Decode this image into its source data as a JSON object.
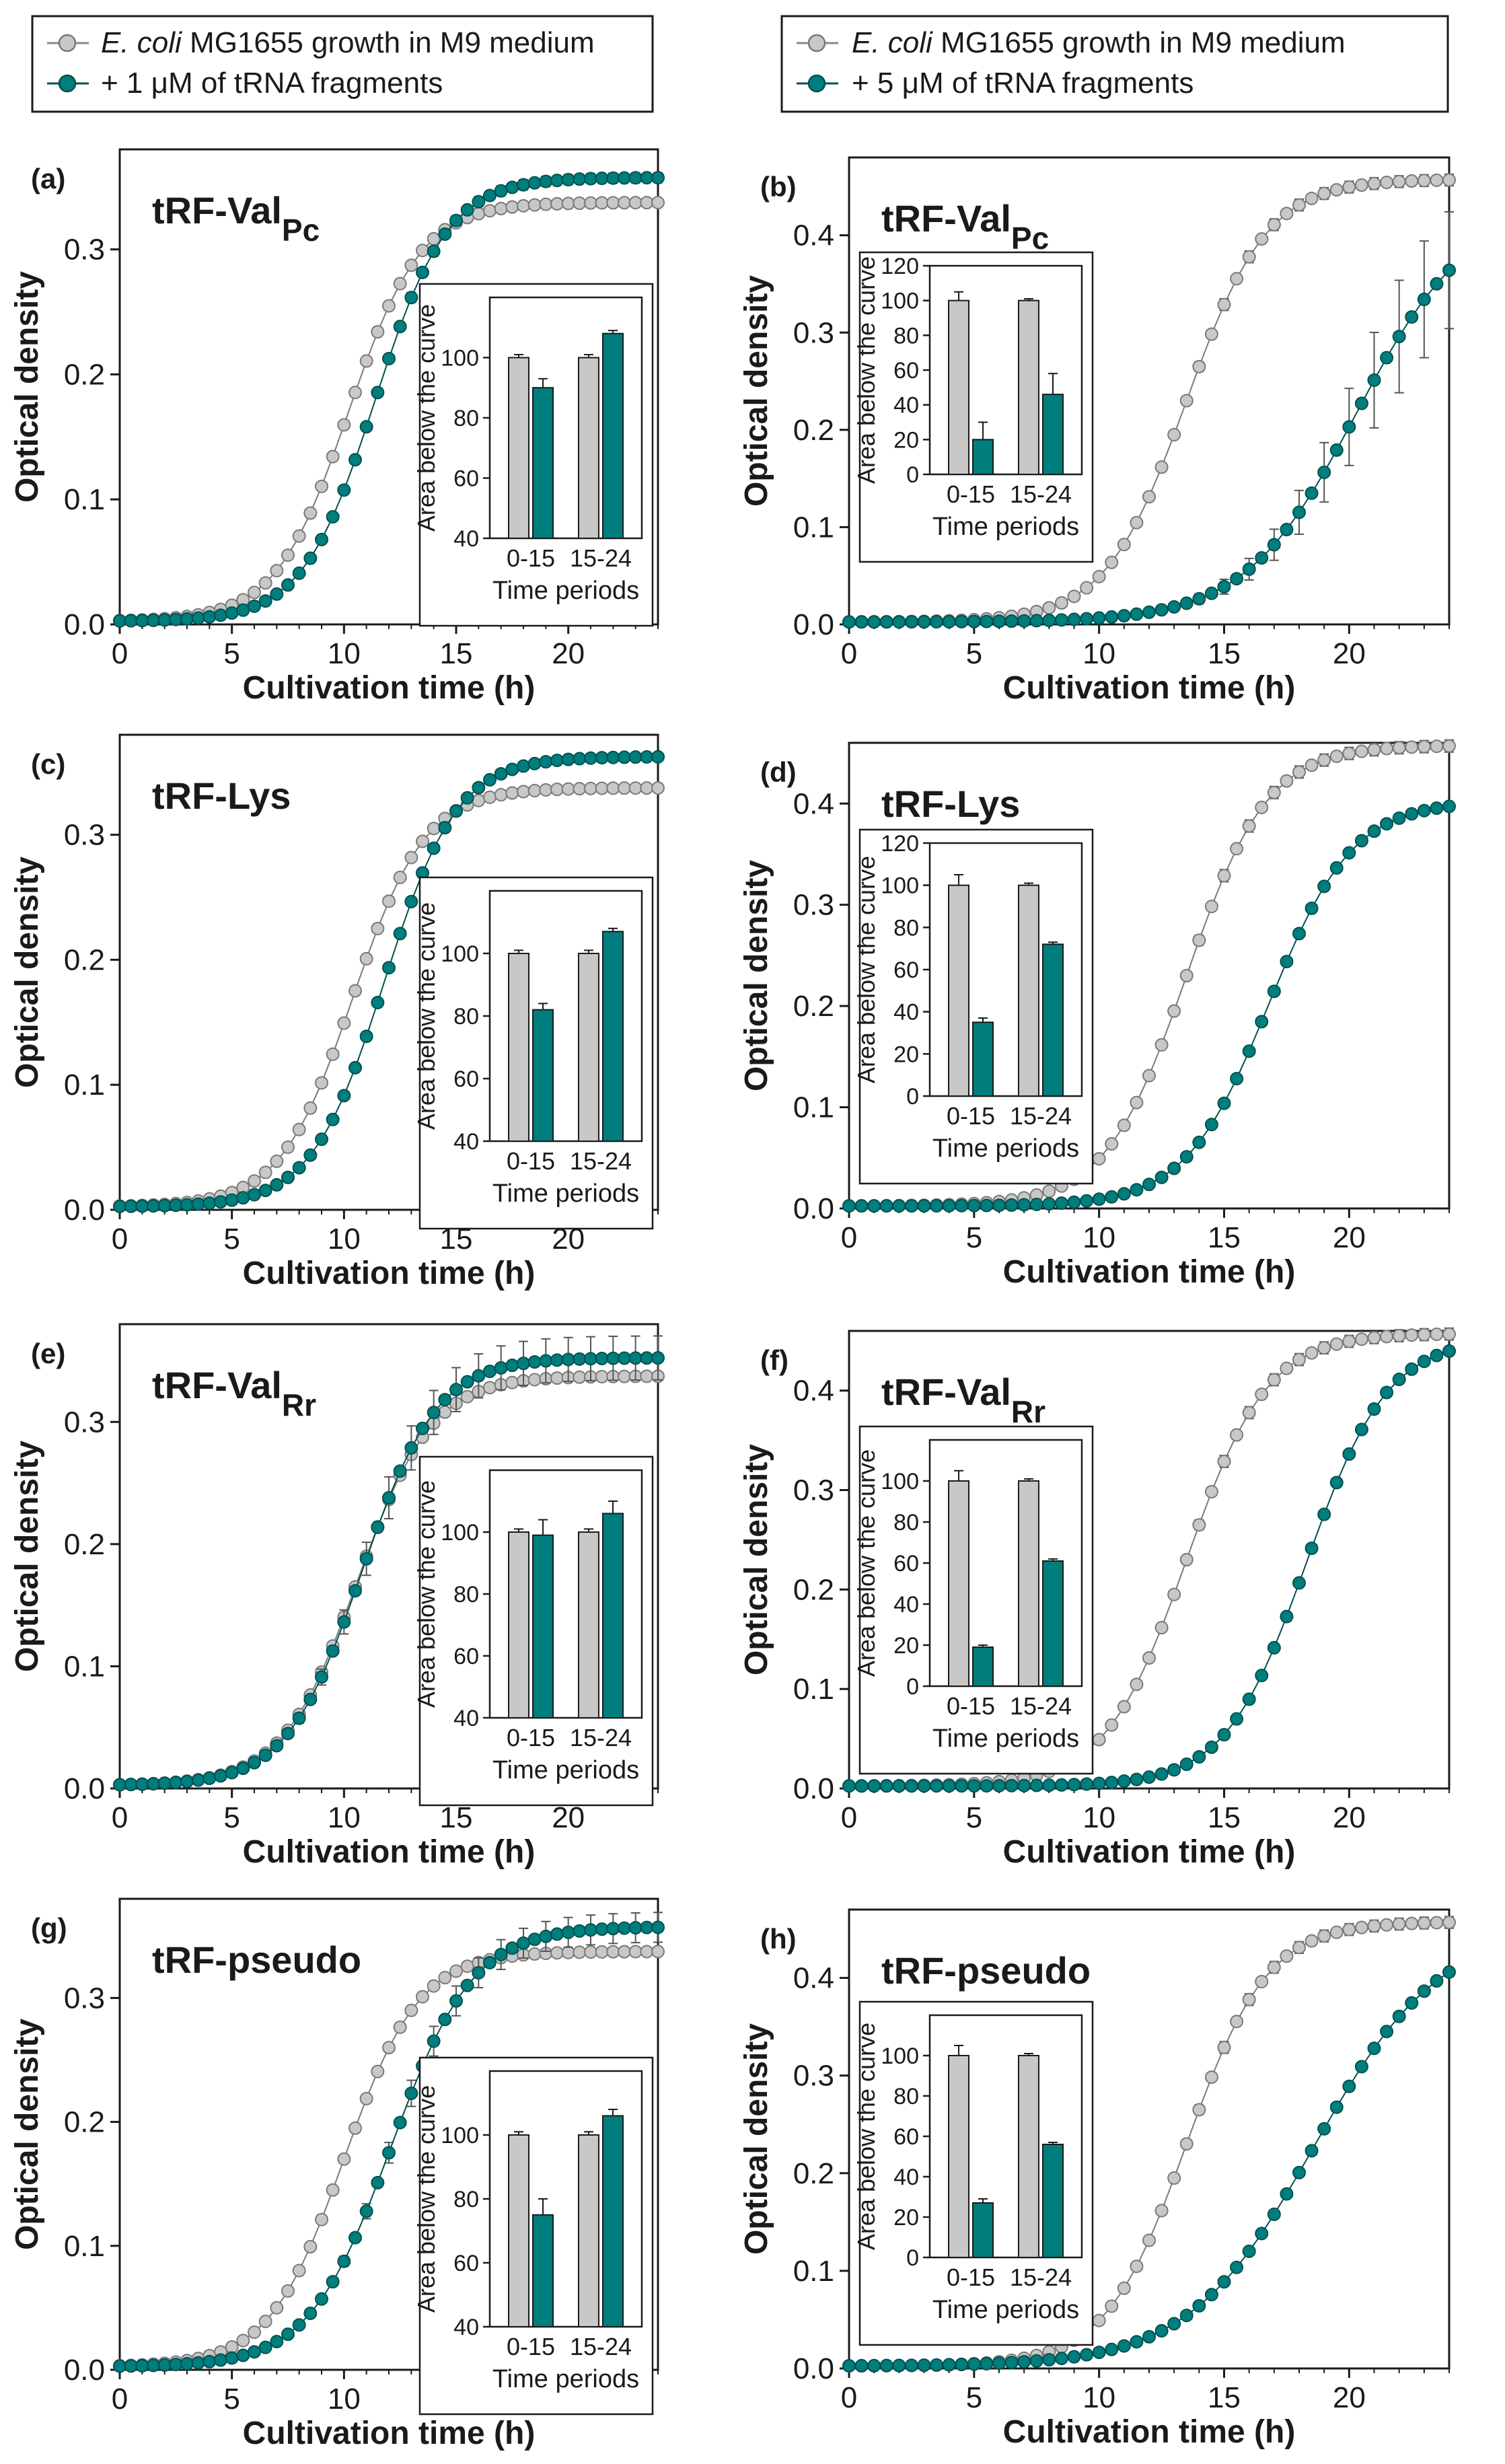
{
  "colors": {
    "control": "#c8c8c8",
    "treated": "#007e7e",
    "treated_dark": "#00504f",
    "axis": "#1a1a1a"
  },
  "legends": [
    {
      "control_italic": "E. coli",
      "control_rest": " MG1655 growth in M9 medium",
      "treated": "+ 1 μM of tRNA fragments"
    },
    {
      "control_italic": "E. coli",
      "control_rest": " MG1655 growth in M9 medium",
      "treated": "+ 5 μM of tRNA fragments"
    }
  ],
  "chart_data": [
    {
      "panel": "(a)",
      "title": "tRF-Val",
      "sub": "Pc",
      "type": "line",
      "xlabel": "Cultivation time (h)",
      "ylabel": "Optical density",
      "xlim": [
        0,
        24
      ],
      "ylim": [
        0,
        0.38
      ],
      "xticks": [
        0,
        5,
        10,
        15,
        20
      ],
      "yticks": [
        0.0,
        0.1,
        0.2,
        0.3
      ],
      "ytick_labels": [
        "0.0",
        "0.1",
        "0.2",
        "0.3"
      ],
      "series": [
        {
          "name": "control",
          "K": 0.335,
          "mid": 10.2,
          "r": 0.62,
          "err": 0.003
        },
        {
          "name": "treated",
          "K": 0.355,
          "mid": 11.4,
          "r": 0.62,
          "err": 0.004
        }
      ],
      "inset": {
        "type": "bar",
        "xlabel": "Time periods",
        "ylabel": "Area below the curve",
        "categories": [
          "0-15",
          "15-24"
        ],
        "ylim": [
          40,
          120
        ],
        "yticks": [
          40,
          60,
          80,
          100
        ],
        "control": [
          100,
          100
        ],
        "treated": [
          90,
          108
        ],
        "control_err": [
          1,
          1
        ],
        "treated_err": [
          3,
          1
        ]
      }
    },
    {
      "panel": "(b)",
      "title": "tRF-Val",
      "sub": "Pc",
      "type": "line",
      "xlabel": "Cultivation time (h)",
      "ylabel": "Optical density",
      "xlim": [
        0,
        24
      ],
      "ylim": [
        0,
        0.48
      ],
      "xticks": [
        0,
        5,
        10,
        15,
        20
      ],
      "yticks": [
        0.0,
        0.1,
        0.2,
        0.3,
        0.4
      ],
      "ytick_labels": [
        "0.0",
        "0.1",
        "0.2",
        "0.3",
        "0.4"
      ],
      "series": [
        {
          "name": "control",
          "K": 0.455,
          "mid": 13.5,
          "r": 0.62,
          "err": 0.006
        },
        {
          "name": "treated",
          "K": 0.43,
          "mid": 20.3,
          "r": 0.45,
          "err": 0.06
        }
      ],
      "inset": {
        "type": "bar",
        "xlabel": "Time periods",
        "ylabel": "Area below the curve",
        "categories": [
          "0-15",
          "15-24"
        ],
        "ylim": [
          0,
          120
        ],
        "yticks": [
          0,
          20,
          40,
          60,
          80,
          100,
          120
        ],
        "control": [
          100,
          100
        ],
        "treated": [
          20,
          46
        ],
        "control_err": [
          5,
          1
        ],
        "treated_err": [
          10,
          12
        ]
      }
    },
    {
      "panel": "(c)",
      "title": "tRF-Lys",
      "sub": "",
      "type": "line",
      "xlabel": "Cultivation time (h)",
      "ylabel": "Optical density",
      "xlim": [
        0,
        24
      ],
      "ylim": [
        0,
        0.38
      ],
      "xticks": [
        0,
        5,
        10,
        15,
        20
      ],
      "yticks": [
        0.0,
        0.1,
        0.2,
        0.3
      ],
      "ytick_labels": [
        "0.0",
        "0.1",
        "0.2",
        "0.3"
      ],
      "series": [
        {
          "name": "control",
          "K": 0.335,
          "mid": 10.4,
          "r": 0.62,
          "err": 0.003
        },
        {
          "name": "treated",
          "K": 0.36,
          "mid": 11.8,
          "r": 0.62,
          "err": 0.003
        }
      ],
      "inset": {
        "type": "bar",
        "xlabel": "Time periods",
        "ylabel": "Area below the curve",
        "categories": [
          "0-15",
          "15-24"
        ],
        "ylim": [
          40,
          120
        ],
        "yticks": [
          40,
          60,
          80,
          100
        ],
        "control": [
          100,
          100
        ],
        "treated": [
          82,
          107
        ],
        "control_err": [
          1,
          1
        ],
        "treated_err": [
          2,
          1
        ]
      }
    },
    {
      "panel": "(d)",
      "title": "tRF-Lys",
      "sub": "",
      "type": "line",
      "xlabel": "Cultivation time (h)",
      "ylabel": "Optical density",
      "xlim": [
        0,
        24
      ],
      "ylim": [
        0,
        0.46
      ],
      "xticks": [
        0,
        5,
        10,
        15,
        20
      ],
      "yticks": [
        0.0,
        0.1,
        0.2,
        0.3,
        0.4
      ],
      "ytick_labels": [
        "0.0",
        "0.1",
        "0.2",
        "0.3",
        "0.4"
      ],
      "series": [
        {
          "name": "control",
          "K": 0.455,
          "mid": 13.5,
          "r": 0.62,
          "err": 0.006
        },
        {
          "name": "treated",
          "K": 0.4,
          "mid": 16.8,
          "r": 0.6,
          "err": 0.003
        }
      ],
      "inset": {
        "type": "bar",
        "xlabel": "Time periods",
        "ylabel": "Area below the curve",
        "categories": [
          "0-15",
          "15-24"
        ],
        "ylim": [
          0,
          120
        ],
        "yticks": [
          0,
          20,
          40,
          60,
          80,
          100,
          120
        ],
        "control": [
          100,
          100
        ],
        "treated": [
          35,
          72
        ],
        "control_err": [
          5,
          1
        ],
        "treated_err": [
          2,
          1
        ]
      }
    },
    {
      "panel": "(e)",
      "title": "tRF-Val",
      "sub": "Rr",
      "type": "line",
      "xlabel": "Cultivation time (h)",
      "ylabel": "Optical density",
      "xlim": [
        0,
        24
      ],
      "ylim": [
        0,
        0.38
      ],
      "xticks": [
        0,
        5,
        10,
        15,
        20
      ],
      "yticks": [
        0.0,
        0.1,
        0.2,
        0.3
      ],
      "ytick_labels": [
        "0.0",
        "0.1",
        "0.2",
        "0.3"
      ],
      "series": [
        {
          "name": "control",
          "K": 0.335,
          "mid": 10.6,
          "r": 0.6,
          "err": 0.003
        },
        {
          "name": "treated",
          "K": 0.35,
          "mid": 10.8,
          "r": 0.6,
          "err": 0.018
        }
      ],
      "inset": {
        "type": "bar",
        "xlabel": "Time periods",
        "ylabel": "Area below the curve",
        "categories": [
          "0-15",
          "15-24"
        ],
        "ylim": [
          40,
          120
        ],
        "yticks": [
          40,
          60,
          80,
          100
        ],
        "control": [
          100,
          100
        ],
        "treated": [
          99,
          106
        ],
        "control_err": [
          1,
          1
        ],
        "treated_err": [
          5,
          4
        ]
      }
    },
    {
      "panel": "(f)",
      "title": "tRF-Val",
      "sub": "Rr",
      "type": "line",
      "xlabel": "Cultivation time (h)",
      "ylabel": "Optical density",
      "xlim": [
        0,
        24
      ],
      "ylim": [
        0,
        0.46
      ],
      "xticks": [
        0,
        5,
        10,
        15,
        20
      ],
      "yticks": [
        0.0,
        0.1,
        0.2,
        0.3,
        0.4
      ],
      "ytick_labels": [
        "0.0",
        "0.1",
        "0.2",
        "0.3",
        "0.4"
      ],
      "series": [
        {
          "name": "control",
          "K": 0.455,
          "mid": 13.5,
          "r": 0.62,
          "err": 0.006
        },
        {
          "name": "treated",
          "K": 0.45,
          "mid": 18.3,
          "r": 0.62,
          "err": 0.004
        }
      ],
      "inset": {
        "type": "bar",
        "xlabel": "Time periods",
        "ylabel": "Area below the curve",
        "categories": [
          "0-15",
          "15-24"
        ],
        "ylim": [
          0,
          120
        ],
        "yticks": [
          0,
          20,
          40,
          60,
          80,
          100
        ],
        "control": [
          100,
          100
        ],
        "treated": [
          19,
          61
        ],
        "control_err": [
          5,
          1
        ],
        "treated_err": [
          1,
          1
        ]
      }
    },
    {
      "panel": "(g)",
      "title": "tRF-pseudo",
      "sub": "",
      "type": "line",
      "xlabel": "Cultivation time (h)",
      "ylabel": "Optical density",
      "xlim": [
        0,
        24
      ],
      "ylim": [
        0,
        0.38
      ],
      "xticks": [
        0,
        5,
        10,
        15,
        20
      ],
      "yticks": [
        0.0,
        0.1,
        0.2,
        0.3
      ],
      "ytick_labels": [
        "0.0",
        "0.1",
        "0.2",
        "0.3"
      ],
      "series": [
        {
          "name": "control",
          "K": 0.335,
          "mid": 10.0,
          "r": 0.6,
          "err": 0.003
        },
        {
          "name": "treated",
          "K": 0.355,
          "mid": 12.1,
          "r": 0.55,
          "err": 0.012
        }
      ],
      "inset": {
        "type": "bar",
        "xlabel": "Time periods",
        "ylabel": "Area below the curve",
        "categories": [
          "0-15",
          "15-24"
        ],
        "ylim": [
          40,
          120
        ],
        "yticks": [
          40,
          60,
          80,
          100
        ],
        "control": [
          100,
          100
        ],
        "treated": [
          75,
          106
        ],
        "control_err": [
          1,
          1
        ],
        "treated_err": [
          5,
          2
        ]
      }
    },
    {
      "panel": "(h)",
      "title": "tRF-pseudo",
      "sub": "",
      "type": "line",
      "xlabel": "Cultivation time (h)",
      "ylabel": "Optical density",
      "xlim": [
        0,
        24
      ],
      "ylim": [
        0,
        0.47
      ],
      "xticks": [
        0,
        5,
        10,
        15,
        20
      ],
      "yticks": [
        0.0,
        0.1,
        0.2,
        0.3,
        0.4
      ],
      "ytick_labels": [
        "0.0",
        "0.1",
        "0.2",
        "0.3",
        "0.4"
      ],
      "series": [
        {
          "name": "control",
          "K": 0.455,
          "mid": 13.5,
          "r": 0.62,
          "err": 0.006
        },
        {
          "name": "treated",
          "K": 0.45,
          "mid": 18.6,
          "r": 0.4,
          "err": 0.003
        }
      ],
      "inset": {
        "type": "bar",
        "xlabel": "Time periods",
        "ylabel": "Area below the curve",
        "categories": [
          "0-15",
          "15-24"
        ],
        "ylim": [
          0,
          120
        ],
        "yticks": [
          0,
          20,
          40,
          60,
          80,
          100
        ],
        "control": [
          100,
          100
        ],
        "treated": [
          27,
          56
        ],
        "control_err": [
          5,
          1
        ],
        "treated_err": [
          2,
          1
        ]
      }
    }
  ]
}
